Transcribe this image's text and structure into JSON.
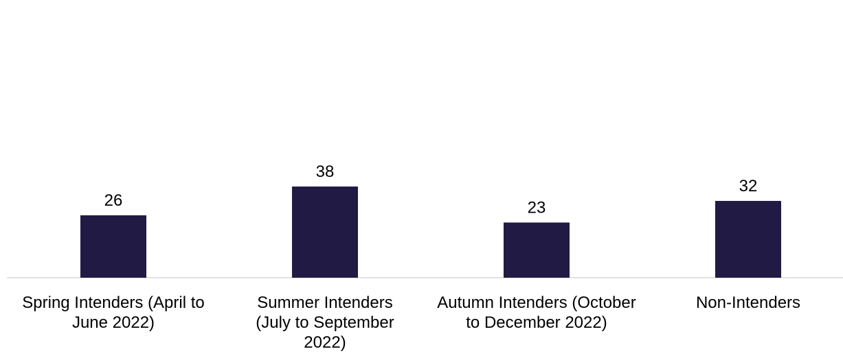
{
  "chart_data": {
    "type": "bar",
    "categories": [
      "Spring Intenders (April to June 2022)",
      "Summer Intenders (July to September 2022)",
      "Autumn Intenders (October to December 2022)",
      "Non-Intenders"
    ],
    "values": [
      26,
      38,
      23,
      32
    ],
    "color": "#211a44"
  }
}
